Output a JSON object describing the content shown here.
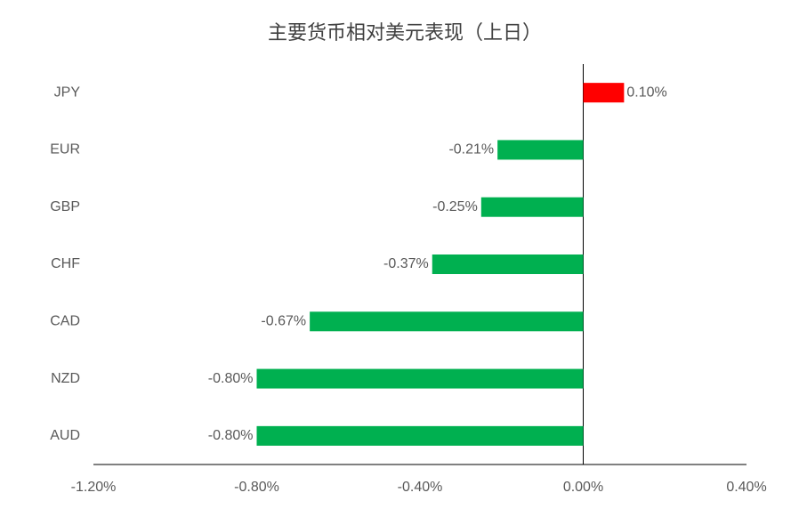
{
  "chart_data": {
    "type": "barh",
    "title": "主要货币相对美元表现（上日）",
    "categories": [
      "JPY",
      "EUR",
      "GBP",
      "CHF",
      "CAD",
      "NZD",
      "AUD"
    ],
    "values": [
      0.1,
      -0.21,
      -0.25,
      -0.37,
      -0.67,
      -0.8,
      -0.8
    ],
    "value_labels": [
      "0.10%",
      "-0.21%",
      "-0.25%",
      "-0.37%",
      "-0.67%",
      "-0.80%",
      "-0.80%"
    ],
    "colors": [
      "#ff0000",
      "#00b050",
      "#00b050",
      "#00b050",
      "#00b050",
      "#00b050",
      "#00b050"
    ],
    "xlim": [
      -1.2,
      0.4
    ],
    "xticks": [
      {
        "value": -1.2,
        "label": "-1.20%"
      },
      {
        "value": -0.8,
        "label": "-0.80%"
      },
      {
        "value": -0.4,
        "label": "-0.40%"
      },
      {
        "value": 0,
        "label": "0.00%"
      },
      {
        "value": 0.4,
        "label": "0.40%"
      }
    ],
    "grid": false
  }
}
